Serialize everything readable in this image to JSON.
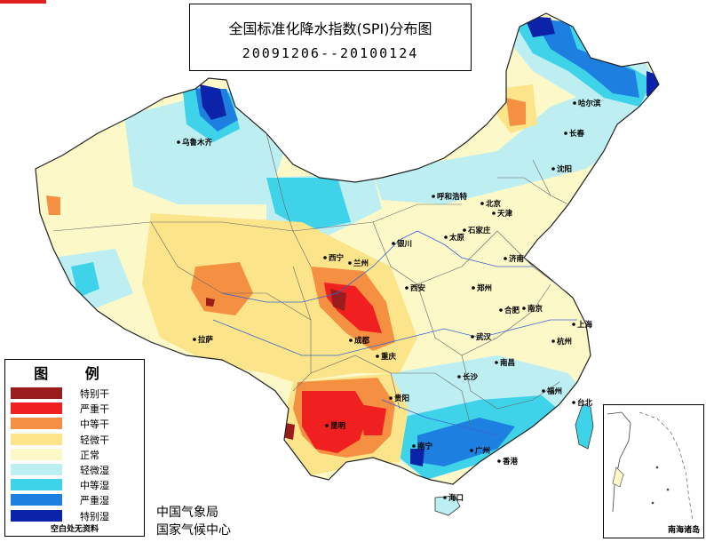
{
  "title": "全国标准化降水指数(SPI)分布图",
  "date_range": "20091206--20100124",
  "legend": {
    "heading": "图 例",
    "items": [
      {
        "label": "特别干",
        "color": "#9a1c1c"
      },
      {
        "label": "严重干",
        "color": "#f02020"
      },
      {
        "label": "中等干",
        "color": "#f59042"
      },
      {
        "label": "轻微干",
        "color": "#fbe48a"
      },
      {
        "label": "正常",
        "color": "#fdf8c8"
      },
      {
        "label": "轻微湿",
        "color": "#bdeff2"
      },
      {
        "label": "中等湿",
        "color": "#3fd3ea"
      },
      {
        "label": "严重湿",
        "color": "#1d7fe0"
      },
      {
        "label": "特别湿",
        "color": "#0a23a8"
      }
    ],
    "no_data": "空白处无资料"
  },
  "organizations": [
    "中国气象局",
    "国家气候中心"
  ],
  "inset_label": "南海诸岛",
  "cities": [
    {
      "name": "乌鲁木齐",
      "icon": "city-dot-icon"
    },
    {
      "name": "哈尔滨",
      "icon": "city-dot-icon"
    },
    {
      "name": "长春",
      "icon": "city-dot-icon"
    },
    {
      "name": "沈阳",
      "icon": "city-dot-icon"
    },
    {
      "name": "呼和浩特",
      "icon": "city-dot-icon"
    },
    {
      "name": "北京",
      "icon": "city-dot-icon"
    },
    {
      "name": "天津",
      "icon": "city-dot-icon"
    },
    {
      "name": "银川",
      "icon": "city-dot-icon"
    },
    {
      "name": "太原",
      "icon": "city-dot-icon"
    },
    {
      "name": "石家庄",
      "icon": "city-dot-icon"
    },
    {
      "name": "济南",
      "icon": "city-dot-icon"
    },
    {
      "name": "西宁",
      "icon": "city-dot-icon"
    },
    {
      "name": "兰州",
      "icon": "city-dot-icon"
    },
    {
      "name": "西安",
      "icon": "city-dot-icon"
    },
    {
      "name": "郑州",
      "icon": "city-dot-icon"
    },
    {
      "name": "合肥",
      "icon": "city-dot-icon"
    },
    {
      "name": "南京",
      "icon": "city-dot-icon"
    },
    {
      "name": "上海",
      "icon": "city-dot-icon"
    },
    {
      "name": "成都",
      "icon": "city-dot-icon"
    },
    {
      "name": "武汉",
      "icon": "city-dot-icon"
    },
    {
      "name": "杭州",
      "icon": "city-dot-icon"
    },
    {
      "name": "拉萨",
      "icon": "city-dot-icon"
    },
    {
      "name": "重庆",
      "icon": "city-dot-icon"
    },
    {
      "name": "南昌",
      "icon": "city-dot-icon"
    },
    {
      "name": "长沙",
      "icon": "city-dot-icon"
    },
    {
      "name": "贵阳",
      "icon": "city-dot-icon"
    },
    {
      "name": "福州",
      "icon": "city-dot-icon"
    },
    {
      "name": "台北",
      "icon": "city-dot-icon"
    },
    {
      "name": "昆明",
      "icon": "city-dot-icon"
    },
    {
      "name": "南宁",
      "icon": "city-dot-icon"
    },
    {
      "name": "广州",
      "icon": "city-dot-icon"
    },
    {
      "name": "香港",
      "icon": "city-dot-icon"
    },
    {
      "name": "海口",
      "icon": "city-dot-icon"
    }
  ]
}
